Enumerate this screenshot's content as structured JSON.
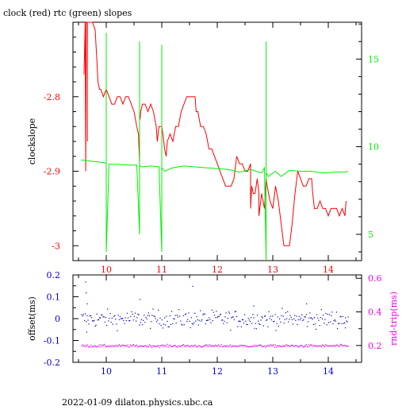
{
  "title": "clock (red) rtc (green) slopes",
  "footer": "2022-01-09  dilaton.physics.ubc.ca",
  "colors": {
    "clock": "#ff0000",
    "rtc": "#00ee00",
    "offset": "#0000cc",
    "rndtrip": "#ee00ee",
    "frame": "#000000"
  },
  "chart_data": [
    {
      "type": "line",
      "panel": "top",
      "ylabel_left": "clockslope",
      "xlim": [
        9.4,
        14.6
      ],
      "ylim_left": [
        -3.02,
        -2.7
      ],
      "ylim_right": [
        3.5,
        17.1
      ],
      "xticks": [
        10,
        11,
        12,
        13,
        14
      ],
      "yticks_left": [
        -3,
        -2.9,
        -2.8
      ],
      "ytick_labels_left": [
        "-3",
        "-2.9",
        "-2.8"
      ],
      "yticks_right": [
        5,
        10,
        15
      ],
      "ytick_labels_right": [
        "5",
        "10",
        "15"
      ],
      "series": [
        {
          "axis": "left",
          "color": "clock",
          "x": [
            9.6,
            9.62,
            9.63,
            9.64,
            9.65,
            9.66,
            9.66,
            9.66,
            9.67,
            9.68,
            9.7,
            9.75,
            9.8,
            9.83,
            9.85,
            9.88,
            9.9,
            9.95,
            10.0,
            10.05,
            10.1,
            10.15,
            10.2,
            10.25,
            10.3,
            10.35,
            10.4,
            10.5,
            10.55,
            10.58,
            10.6,
            10.6,
            10.6,
            10.61,
            10.62,
            10.65,
            10.7,
            10.75,
            10.8,
            10.85,
            10.9,
            10.92,
            10.95,
            11.0,
            11.02,
            11.05,
            11.08,
            11.1,
            11.15,
            11.2,
            11.25,
            11.3,
            11.35,
            11.4,
            11.45,
            11.5,
            11.55,
            11.6,
            11.62,
            11.65,
            11.7,
            11.75,
            11.8,
            11.85,
            11.9,
            11.95,
            12.0,
            12.05,
            12.1,
            12.15,
            12.2,
            12.25,
            12.3,
            12.35,
            12.4,
            12.45,
            12.5,
            12.55,
            12.6,
            12.6,
            12.62,
            12.65,
            12.68,
            12.7,
            12.72,
            12.75,
            12.75,
            12.8,
            12.85,
            12.88,
            12.9,
            12.95,
            13.0,
            13.05,
            13.1,
            13.15,
            13.2,
            13.25,
            13.3,
            13.35,
            13.4,
            13.45,
            13.5,
            13.55,
            13.6,
            13.65,
            13.7,
            13.72,
            13.75,
            13.8,
            13.85,
            13.9,
            13.95,
            14.0,
            14.05,
            14.1,
            14.15,
            14.2,
            14.25,
            14.3,
            14.32
          ],
          "y": [
            -2.77,
            -2.7,
            -2.9,
            -2.7,
            -2.7,
            -2.7,
            -2.86,
            -2.7,
            -2.7,
            -2.7,
            -2.7,
            -2.7,
            -2.71,
            -2.75,
            -2.78,
            -2.79,
            -2.79,
            -2.8,
            -2.79,
            -2.8,
            -2.81,
            -2.81,
            -2.8,
            -2.8,
            -2.81,
            -2.8,
            -2.8,
            -2.82,
            -2.84,
            -2.85,
            -2.89,
            -2.84,
            -2.83,
            -2.83,
            -2.82,
            -2.81,
            -2.81,
            -2.82,
            -2.81,
            -2.82,
            -2.84,
            -2.86,
            -2.84,
            -2.84,
            -2.85,
            -2.87,
            -2.88,
            -2.86,
            -2.85,
            -2.86,
            -2.84,
            -2.84,
            -2.82,
            -2.81,
            -2.8,
            -2.8,
            -2.8,
            -2.8,
            -2.82,
            -2.82,
            -2.84,
            -2.84,
            -2.85,
            -2.87,
            -2.87,
            -2.88,
            -2.89,
            -2.9,
            -2.91,
            -2.92,
            -2.92,
            -2.92,
            -2.91,
            -2.88,
            -2.89,
            -2.89,
            -2.9,
            -2.9,
            -2.89,
            -2.95,
            -2.92,
            -2.93,
            -2.93,
            -2.92,
            -2.91,
            -2.93,
            -2.96,
            -2.93,
            -2.95,
            -2.91,
            -2.92,
            -2.94,
            -2.95,
            -2.92,
            -2.94,
            -2.97,
            -3.0,
            -3.0,
            -3.0,
            -2.97,
            -2.93,
            -2.9,
            -2.91,
            -2.92,
            -2.92,
            -2.91,
            -2.91,
            -2.93,
            -2.95,
            -2.95,
            -2.94,
            -2.95,
            -2.95,
            -2.96,
            -2.95,
            -2.95,
            -2.95,
            -2.96,
            -2.95,
            -2.96,
            -2.94
          ]
        },
        {
          "axis": "right",
          "color": "rtc",
          "x": [
            9.55,
            9.65,
            9.8,
            9.95,
            10.0,
            10.0,
            10.0,
            10.05,
            10.2,
            10.4,
            10.55,
            10.6,
            10.6,
            10.6,
            10.65,
            10.8,
            10.95,
            11.0,
            11.0,
            11.0,
            11.05,
            11.2,
            11.4,
            11.6,
            11.8,
            12.0,
            12.2,
            12.4,
            12.6,
            12.7,
            12.8,
            12.85,
            12.88,
            12.88,
            12.88,
            12.92,
            13.0,
            13.05,
            13.15,
            13.3,
            13.5,
            13.7,
            13.9,
            14.1,
            14.3,
            14.35
          ],
          "y": [
            9.25,
            9.2,
            9.15,
            9.1,
            9.05,
            16.5,
            4.0,
            9.0,
            9.0,
            8.95,
            8.95,
            5.0,
            16.0,
            8.9,
            8.85,
            8.9,
            8.85,
            4.0,
            15.8,
            8.8,
            8.6,
            8.8,
            8.9,
            8.85,
            8.8,
            8.75,
            8.7,
            8.55,
            8.7,
            8.6,
            8.5,
            8.8,
            3.5,
            16.0,
            8.5,
            8.3,
            8.5,
            8.6,
            8.3,
            8.65,
            8.6,
            8.6,
            8.5,
            8.55,
            8.55,
            8.6
          ]
        }
      ]
    },
    {
      "type": "scatter",
      "panel": "bottom",
      "ylabel_left": "offset(ms)",
      "ylabel_right": "rnd-trip(ms)",
      "xlim": [
        9.4,
        14.6
      ],
      "ylim_left": [
        -0.2,
        0.2
      ],
      "ylim_right": [
        0.1,
        0.62
      ],
      "xticks": [
        10,
        11,
        12,
        13,
        14
      ],
      "yticks_left": [
        -0.2,
        -0.1,
        0,
        0.1,
        0.2
      ],
      "ytick_labels_left": [
        "-0.2",
        "-0.1",
        "0",
        "0.1",
        "0.2"
      ],
      "yticks_right": [
        0.2,
        0.4,
        0.6
      ],
      "ytick_labels_right": [
        "0.2",
        "0.4",
        "0.6"
      ],
      "series": [
        {
          "axis": "left",
          "color": "offset",
          "x_range": [
            9.55,
            14.35
          ],
          "n": 300,
          "center": 0.0,
          "spread": 0.02,
          "outliers": [
            [
              9.62,
              0.17
            ],
            [
              9.63,
              0.12
            ],
            [
              9.65,
              0.07
            ],
            [
              9.64,
              -0.06
            ],
            [
              10.6,
              0.09
            ],
            [
              11.55,
              0.15
            ],
            [
              13.6,
              0.07
            ],
            [
              12.65,
              0.06
            ],
            [
              14.3,
              -0.04
            ]
          ]
        },
        {
          "axis": "right",
          "color": "rndtrip",
          "x_range": [
            9.55,
            14.35
          ],
          "n": 320,
          "center": 0.2,
          "spread": 0.004
        }
      ]
    }
  ]
}
